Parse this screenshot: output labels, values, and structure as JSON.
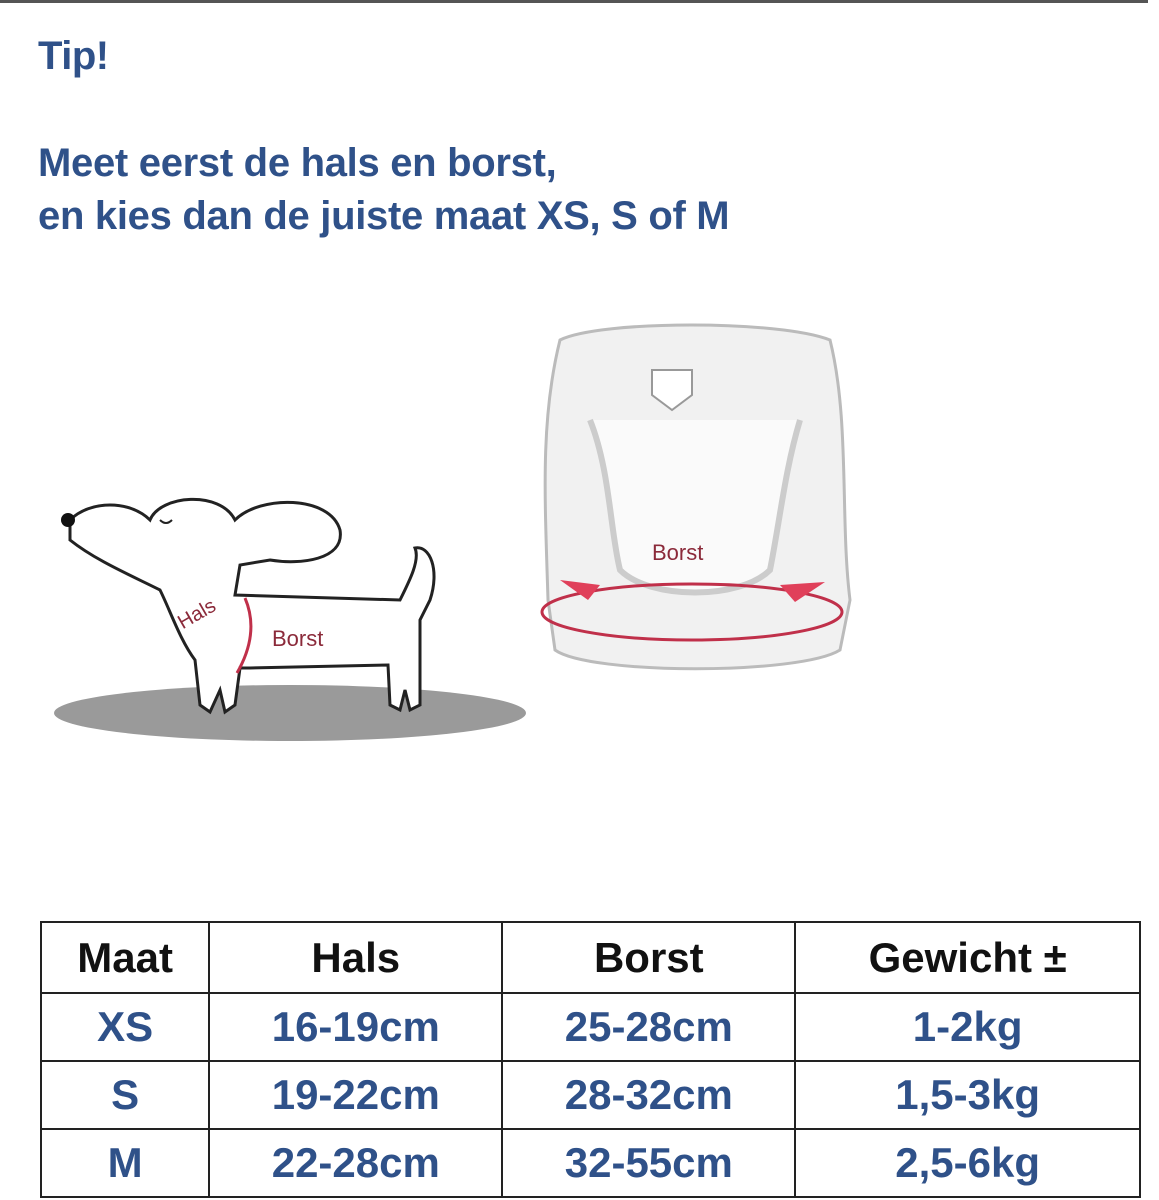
{
  "tip": "Tip!",
  "instruction": [
    "Meet eerst de hals en borst,",
    "en kies dan de juiste maat XS, S of M"
  ],
  "illustration": {
    "dog_labels": {
      "neck": "Hals",
      "chest": "Borst"
    },
    "harness_label": "Borst",
    "accent_color": "#c0304a"
  },
  "table": {
    "headers": [
      "Maat",
      "Hals",
      "Borst",
      "Gewicht ±"
    ],
    "rows": [
      [
        "XS",
        "16-19cm",
        "25-28cm",
        "1-2kg"
      ],
      [
        "S",
        "19-22cm",
        "28-32cm",
        "1,5-3kg"
      ],
      [
        "M",
        "22-28cm",
        "32-55cm",
        "2,5-6kg"
      ]
    ]
  },
  "colors": {
    "text_blue": "#2f5189"
  }
}
